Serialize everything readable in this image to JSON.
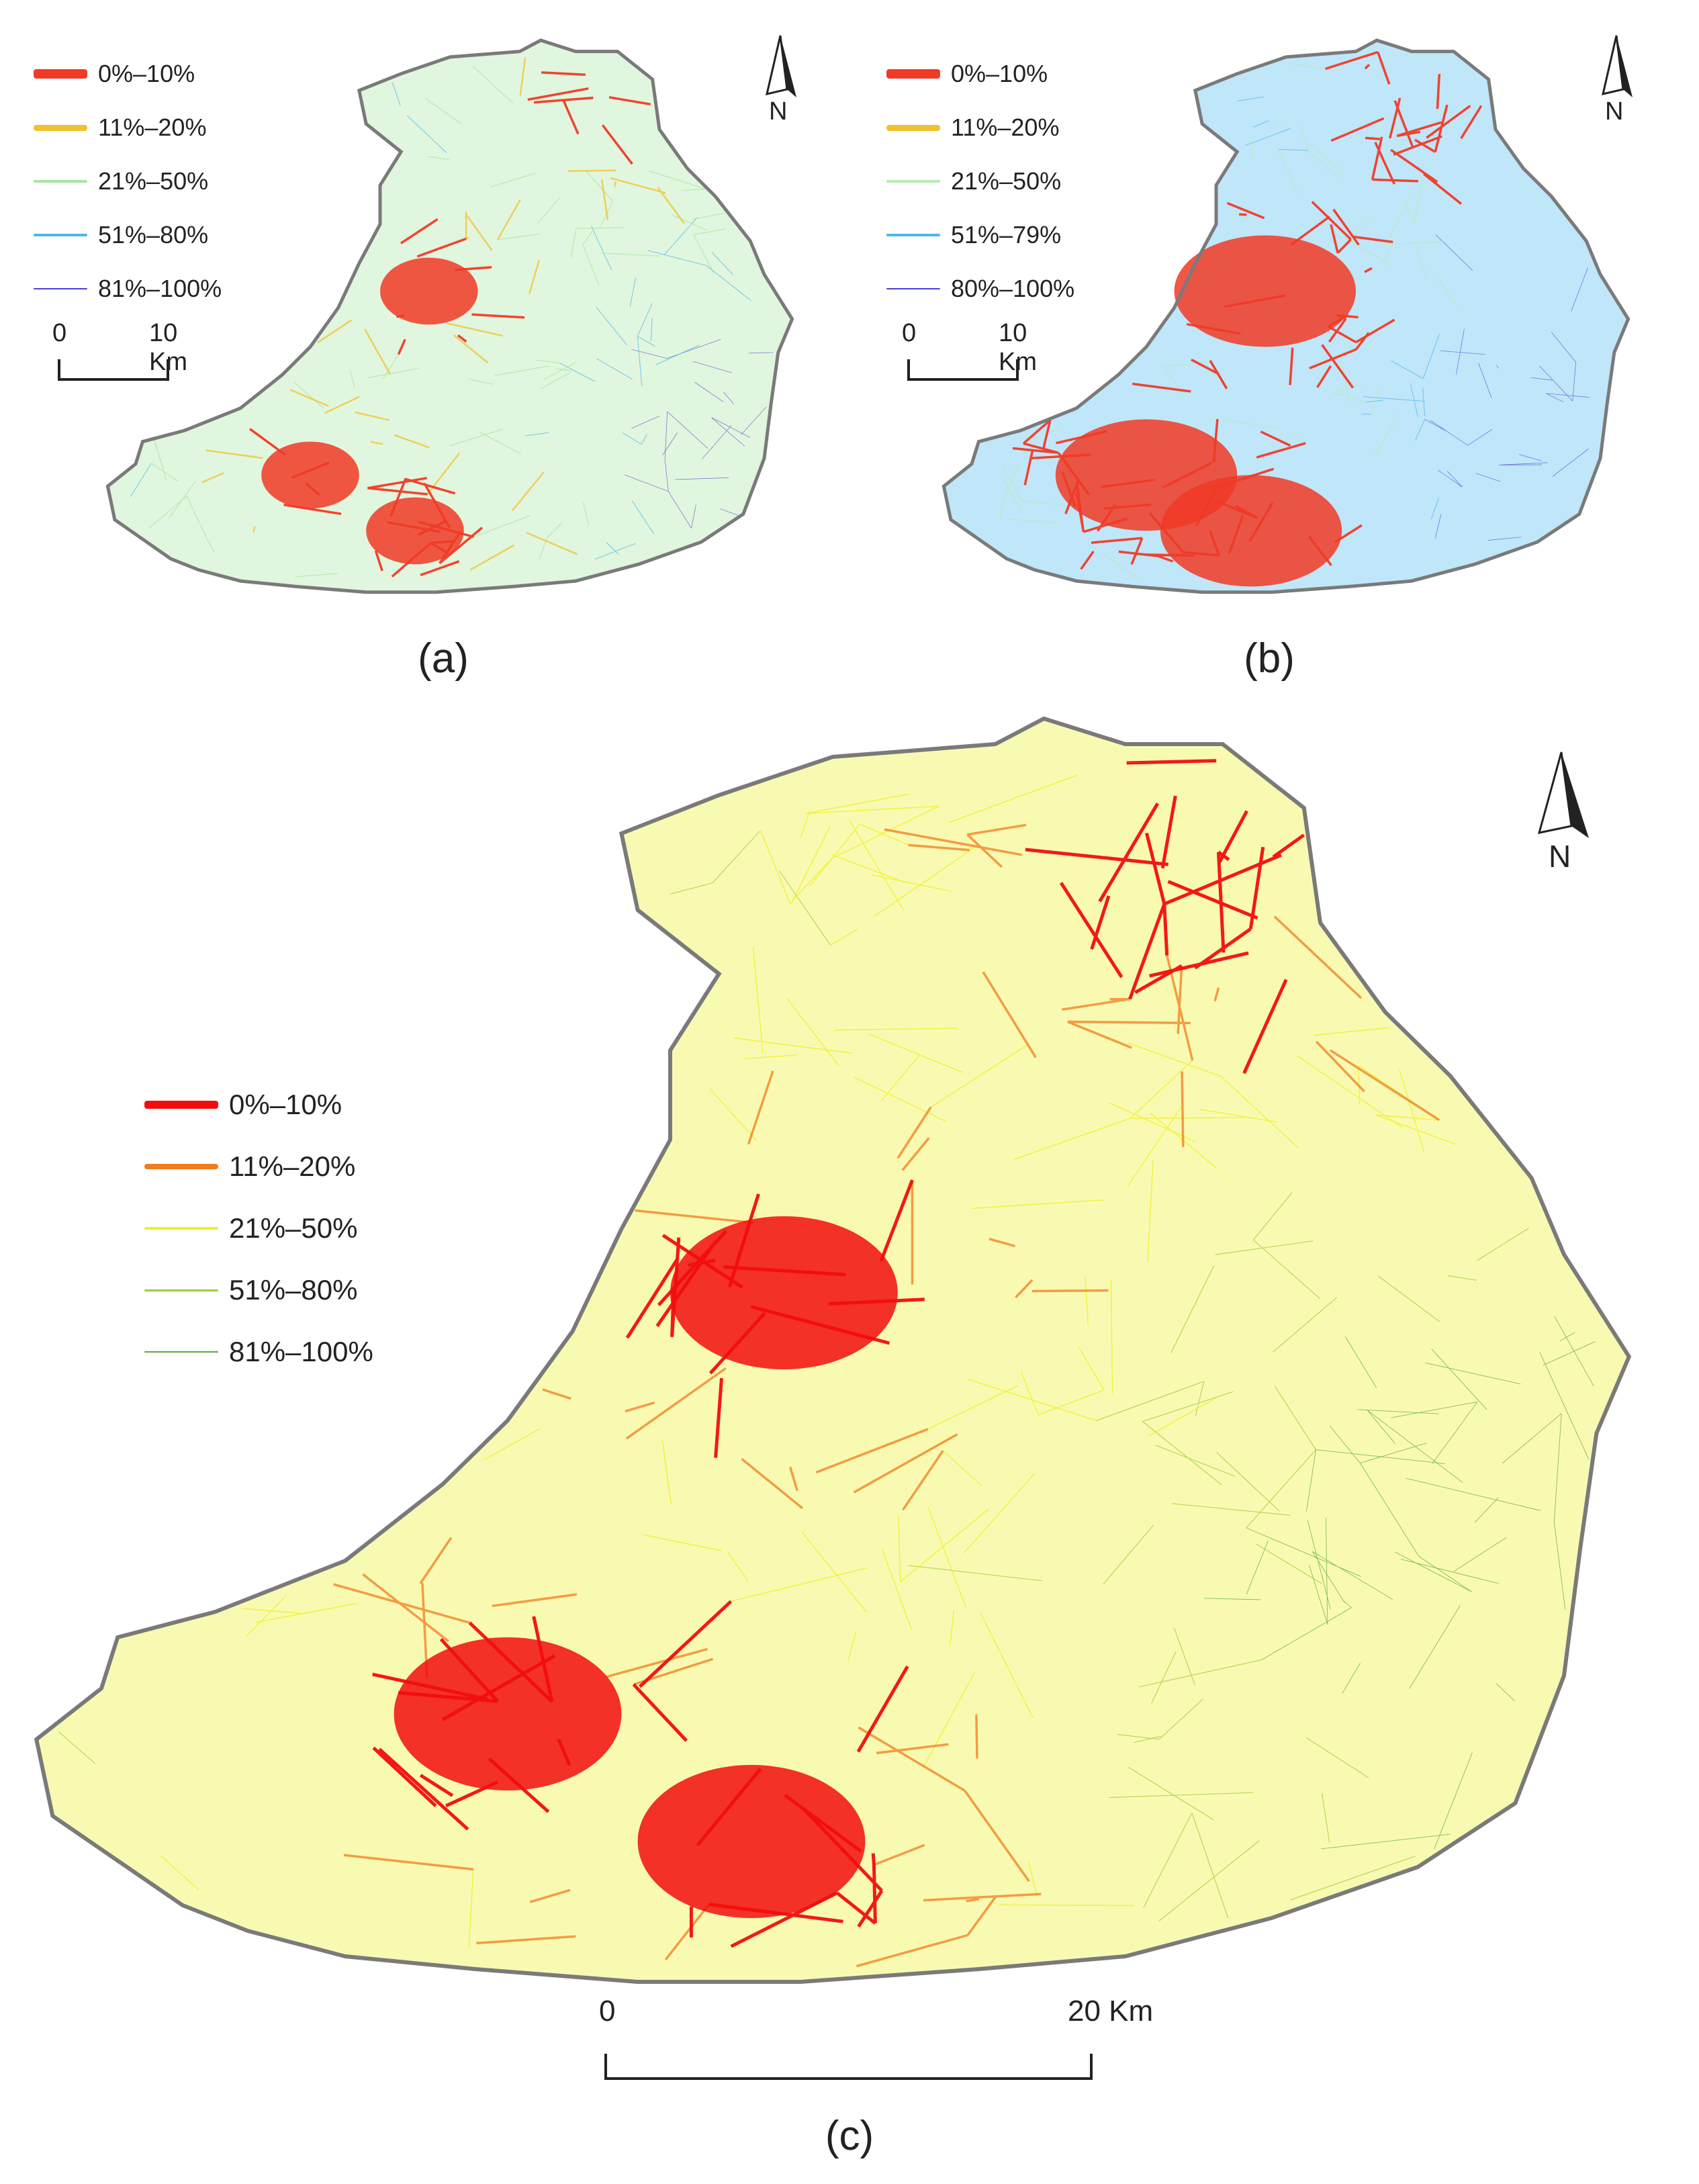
{
  "panels": [
    {
      "caption": "(a)",
      "legend": [
        {
          "label": "0%–10%",
          "color": "#f03a26"
        },
        {
          "label": "11%–20%",
          "color": "#f2c12e"
        },
        {
          "label": "21%–50%",
          "color": "#a8e6a0"
        },
        {
          "label": "51%–80%",
          "color": "#4bb8ee"
        },
        {
          "label": "81%–100%",
          "color": "#4a3fd6"
        }
      ],
      "scale": {
        "start": "0",
        "end": "10 Km"
      },
      "north_label": "N"
    },
    {
      "caption": "(b)",
      "legend": [
        {
          "label": "0%–10%",
          "color": "#f03a26"
        },
        {
          "label": "11%–20%",
          "color": "#f2c12e"
        },
        {
          "label": "21%–50%",
          "color": "#b5ecb0"
        },
        {
          "label": "51%–79%",
          "color": "#4bb8ee"
        },
        {
          "label": "80%–100%",
          "color": "#4a3fd6"
        }
      ],
      "scale": {
        "start": "0",
        "end": "10 Km"
      },
      "north_label": "N"
    },
    {
      "caption": "(c)",
      "legend": [
        {
          "label": "0%–10%",
          "color": "#f20d0d"
        },
        {
          "label": "11%–20%",
          "color": "#f07c1e"
        },
        {
          "label": "21%–50%",
          "color": "#eef022"
        },
        {
          "label": "51%–80%",
          "color": "#9ccc3c"
        },
        {
          "label": "81%–100%",
          "color": "#5aaa3a"
        }
      ],
      "scale": {
        "start": "0",
        "end": "20 Km"
      },
      "north_label": "N"
    }
  ]
}
